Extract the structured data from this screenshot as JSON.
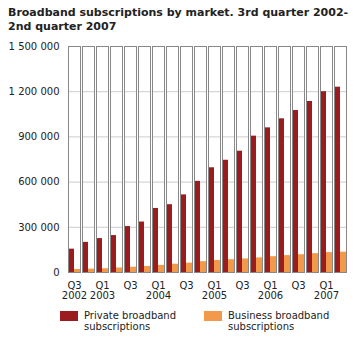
{
  "chart_data": {
    "type": "bar",
    "title": "Broadband subscriptions by market. 3rd quarter 2002-2nd quarter 2007",
    "categories": [
      "Q3\n2002",
      null,
      "Q1\n2003",
      null,
      "Q3",
      null,
      "Q1\n2004",
      null,
      "Q3",
      null,
      "Q1\n2005",
      null,
      "Q3",
      null,
      "Q1\n2006",
      null,
      "Q3",
      null,
      "Q1\n2007",
      null
    ],
    "series": [
      {
        "name": "Private broadband subscriptions",
        "color": "#9b1c1f",
        "values": [
          155000,
          200000,
          225000,
          245000,
          305000,
          335000,
          425000,
          450000,
          515000,
          605000,
          695000,
          745000,
          805000,
          905000,
          960000,
          1020000,
          1075000,
          1135000,
          1200000,
          1230000
        ]
      },
      {
        "name": "Business broadband subscriptions",
        "color": "#f29a4a",
        "values": [
          20000,
          22000,
          25000,
          30000,
          35000,
          40000,
          47000,
          55000,
          62000,
          72000,
          80000,
          85000,
          90000,
          97000,
          105000,
          112000,
          118000,
          125000,
          132000,
          135000
        ]
      }
    ],
    "ylim": [
      0,
      1500000
    ],
    "yticks": [
      0,
      {
        "value": 300000,
        "label": "300 000"
      },
      {
        "value": 600000,
        "label": "600 000"
      },
      {
        "value": 900000,
        "label": "900 000"
      },
      {
        "value": 1200000,
        "label": "1 200 000"
      },
      {
        "value": 1500000,
        "label": "1 500 000"
      }
    ],
    "grid": true,
    "legend": "bottom"
  }
}
